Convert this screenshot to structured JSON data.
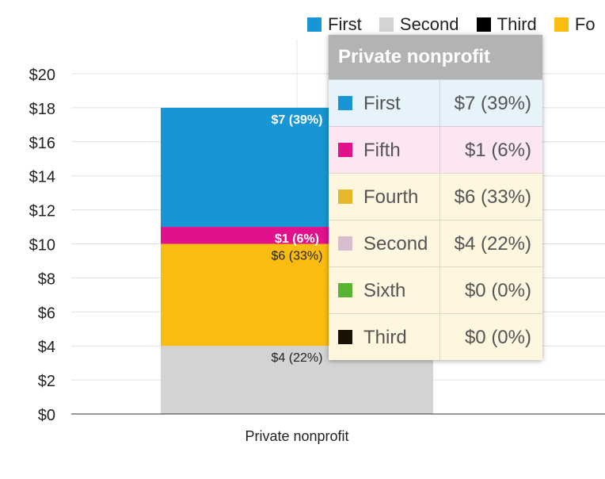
{
  "chart_data": {
    "type": "bar",
    "stacked": true,
    "categories": [
      "Private nonprofit"
    ],
    "series": [
      {
        "name": "Second",
        "values": [
          4
        ],
        "label": "$4 (22%)",
        "color": "#d3d3d3"
      },
      {
        "name": "Fourth",
        "values": [
          6
        ],
        "label": "$6 (33%)",
        "color": "#fbbc12"
      },
      {
        "name": "Fifth",
        "values": [
          1
        ],
        "label": "$1 (6%)",
        "color": "#e0118b"
      },
      {
        "name": "First",
        "values": [
          7
        ],
        "label": "$7 (39%)",
        "color": "#1795d4"
      },
      {
        "name": "Sixth",
        "values": [
          0
        ],
        "label": "",
        "color": "#58b335"
      },
      {
        "name": "Third",
        "values": [
          0
        ],
        "label": "",
        "color": "#1a1206"
      }
    ],
    "ylim": [
      0,
      20
    ],
    "y_ticks": [
      "$0",
      "$2",
      "$4",
      "$6",
      "$8",
      "$10",
      "$12",
      "$14",
      "$16",
      "$18",
      "$20"
    ],
    "grid": true,
    "legend_position": "top-right"
  },
  "legend": {
    "items": [
      {
        "label": "First",
        "color": "#1795d4"
      },
      {
        "label": "Second",
        "color": "#d3d3d3"
      },
      {
        "label": "Third",
        "color": "#000000"
      },
      {
        "label": "Fo",
        "color": "#fbbc12"
      }
    ]
  },
  "tooltip": {
    "title": "Private nonprofit",
    "rows": [
      {
        "name": "First",
        "value": "$7 (39%)",
        "color": "#1795d4",
        "tint": "#e6f3fa"
      },
      {
        "name": "Fifth",
        "value": "$1 (6%)",
        "color": "#e0118b",
        "tint": "#fce6f2"
      },
      {
        "name": "Fourth",
        "value": "$6 (33%)",
        "color": "#e6b829",
        "tint": "#fff6e0"
      },
      {
        "name": "Second",
        "value": "$4 (22%)",
        "color": "#d8bcd0",
        "tint": "#fff6e0"
      },
      {
        "name": "Sixth",
        "value": "$0 (0%)",
        "color": "#58b335",
        "tint": "#fff6e0"
      },
      {
        "name": "Third",
        "value": "$0 (0%)",
        "color": "#1a1206",
        "tint": "#fff6e0"
      }
    ]
  }
}
